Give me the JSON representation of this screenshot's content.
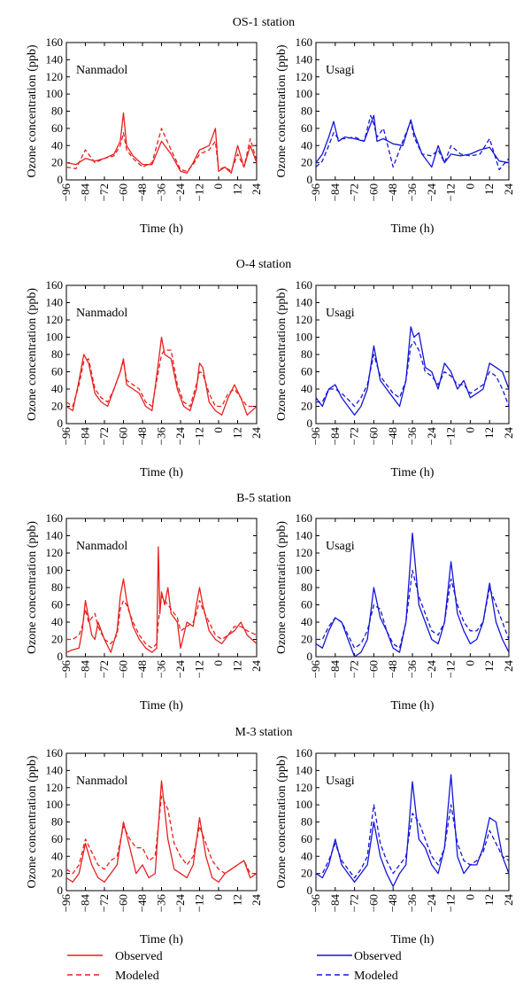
{
  "figure": {
    "legend": {
      "nanmadol": {
        "observed": "Observed",
        "modeled": "Modeled",
        "color": "#e8201e"
      },
      "usagi": {
        "observed": "Observed",
        "modeled": "Modeled",
        "color": "#1515d8"
      }
    }
  },
  "chart_data": [
    {
      "type": "line",
      "station": "OS-1 station",
      "typhoon": "Nanmadol",
      "xlabel": "Time (h)",
      "ylabel": "Ozone concentration (ppb)",
      "xlim": [
        -96,
        24
      ],
      "ylim": [
        0,
        160
      ],
      "xticks": [
        -96,
        -84,
        -72,
        -60,
        -48,
        -36,
        -24,
        -12,
        0,
        12,
        24
      ],
      "yticks": [
        0,
        20,
        40,
        60,
        80,
        100,
        120,
        140,
        160
      ],
      "color": "#e8201e",
      "x": [
        -96,
        -90,
        -84,
        -78,
        -72,
        -66,
        -62,
        -60,
        -58,
        -54,
        -48,
        -42,
        -36,
        -30,
        -24,
        -20,
        -16,
        -12,
        -6,
        -2,
        0,
        4,
        8,
        12,
        16,
        20,
        24
      ],
      "series": [
        {
          "name": "Observed",
          "values": [
            20,
            18,
            25,
            22,
            25,
            30,
            45,
            78,
            40,
            28,
            18,
            18,
            45,
            30,
            10,
            8,
            20,
            35,
            40,
            60,
            10,
            15,
            8,
            40,
            15,
            40,
            20
          ]
        },
        {
          "name": "Modeled",
          "values": [
            15,
            13,
            35,
            20,
            25,
            28,
            40,
            55,
            35,
            25,
            15,
            20,
            60,
            35,
            12,
            10,
            18,
            30,
            35,
            45,
            12,
            15,
            10,
            30,
            15,
            48,
            22
          ]
        }
      ]
    },
    {
      "type": "line",
      "station": "OS-1 station",
      "typhoon": "Usagi",
      "xlabel": "Time (h)",
      "ylabel": "Ozone concentration (ppb)",
      "xlim": [
        -96,
        24
      ],
      "ylim": [
        0,
        160
      ],
      "xticks": [
        -96,
        -84,
        -72,
        -60,
        -48,
        -36,
        -24,
        -12,
        0,
        12,
        24
      ],
      "yticks": [
        0,
        20,
        40,
        60,
        80,
        100,
        120,
        140,
        160
      ],
      "color": "#1515d8",
      "x": [
        -96,
        -92,
        -88,
        -85,
        -82,
        -78,
        -72,
        -66,
        -62,
        -60,
        -58,
        -54,
        -48,
        -42,
        -37,
        -35,
        -30,
        -24,
        -20,
        -16,
        -12,
        -6,
        0,
        6,
        12,
        18,
        24
      ],
      "series": [
        {
          "name": "Observed",
          "values": [
            20,
            30,
            50,
            68,
            45,
            50,
            48,
            45,
            65,
            75,
            45,
            48,
            42,
            40,
            70,
            55,
            30,
            15,
            40,
            20,
            30,
            28,
            30,
            35,
            38,
            22,
            20
          ]
        },
        {
          "name": "Modeled",
          "values": [
            15,
            22,
            40,
            55,
            48,
            48,
            50,
            45,
            75,
            65,
            50,
            60,
            15,
            45,
            68,
            50,
            30,
            28,
            35,
            20,
            40,
            30,
            28,
            30,
            48,
            12,
            25
          ]
        }
      ]
    },
    {
      "type": "line",
      "station": "O-4 station",
      "typhoon": "Nanmadol",
      "xlabel": "Time (h)",
      "ylabel": "Ozone concentration (ppb)",
      "xlim": [
        -96,
        24
      ],
      "ylim": [
        0,
        160
      ],
      "xticks": [
        -96,
        -84,
        -72,
        -60,
        -48,
        -36,
        -24,
        -12,
        0,
        12,
        24
      ],
      "yticks": [
        0,
        20,
        40,
        60,
        80,
        100,
        120,
        140,
        160
      ],
      "color": "#e8201e",
      "x": [
        -96,
        -92,
        -88,
        -85,
        -82,
        -78,
        -74,
        -70,
        -66,
        -62,
        -60,
        -58,
        -54,
        -50,
        -46,
        -42,
        -38,
        -36,
        -34,
        -30,
        -26,
        -22,
        -18,
        -14,
        -12,
        -10,
        -6,
        -2,
        2,
        6,
        10,
        14,
        18,
        24
      ],
      "series": [
        {
          "name": "Observed",
          "values": [
            20,
            15,
            50,
            80,
            70,
            35,
            25,
            20,
            40,
            60,
            75,
            45,
            40,
            35,
            20,
            15,
            70,
            100,
            80,
            75,
            40,
            20,
            15,
            40,
            70,
            65,
            25,
            15,
            10,
            30,
            45,
            30,
            10,
            20
          ]
        },
        {
          "name": "Modeled",
          "values": [
            25,
            20,
            45,
            72,
            75,
            40,
            30,
            25,
            40,
            60,
            72,
            50,
            45,
            40,
            25,
            20,
            60,
            80,
            85,
            85,
            45,
            25,
            20,
            45,
            60,
            58,
            35,
            20,
            20,
            35,
            40,
            30,
            20,
            20
          ]
        }
      ]
    },
    {
      "type": "line",
      "station": "O-4 station",
      "typhoon": "Usagi",
      "xlabel": "Time (h)",
      "ylabel": "Ozone concentration (ppb)",
      "xlim": [
        -96,
        24
      ],
      "ylim": [
        0,
        160
      ],
      "xticks": [
        -96,
        -84,
        -72,
        -60,
        -48,
        -36,
        -24,
        -12,
        0,
        12,
        24
      ],
      "yticks": [
        0,
        20,
        40,
        60,
        80,
        100,
        120,
        140,
        160
      ],
      "color": "#1515d8",
      "x": [
        -96,
        -92,
        -88,
        -84,
        -80,
        -76,
        -72,
        -68,
        -64,
        -60,
        -56,
        -52,
        -48,
        -44,
        -40,
        -37,
        -35,
        -32,
        -28,
        -24,
        -20,
        -16,
        -12,
        -8,
        -4,
        0,
        4,
        8,
        12,
        16,
        20,
        24
      ],
      "series": [
        {
          "name": "Observed",
          "values": [
            30,
            20,
            40,
            45,
            30,
            20,
            10,
            20,
            40,
            90,
            50,
            40,
            30,
            20,
            50,
            112,
            100,
            105,
            65,
            60,
            40,
            70,
            60,
            40,
            50,
            30,
            35,
            40,
            70,
            65,
            60,
            40
          ]
        },
        {
          "name": "Modeled",
          "values": [
            25,
            25,
            40,
            40,
            35,
            28,
            20,
            30,
            45,
            80,
            55,
            45,
            35,
            30,
            50,
            90,
            95,
            85,
            60,
            55,
            45,
            60,
            55,
            45,
            45,
            35,
            40,
            45,
            60,
            55,
            40,
            20
          ]
        }
      ]
    },
    {
      "type": "line",
      "station": "B-5 station",
      "typhoon": "Nanmadol",
      "xlabel": "Time (h)",
      "ylabel": "Ozone concentration (ppb)",
      "xlim": [
        -96,
        24
      ],
      "ylim": [
        0,
        160
      ],
      "xticks": [
        -96,
        -84,
        -72,
        -60,
        -48,
        -36,
        -24,
        -12,
        0,
        12,
        24
      ],
      "yticks": [
        0,
        20,
        40,
        60,
        80,
        100,
        120,
        140,
        160
      ],
      "color": "#e8201e",
      "x": [
        -96,
        -92,
        -88,
        -86,
        -84,
        -82,
        -80,
        -78,
        -76,
        -72,
        -68,
        -64,
        -62,
        -60,
        -58,
        -54,
        -50,
        -46,
        -42,
        -39,
        -38,
        -37,
        -36,
        -34,
        -32,
        -30,
        -26,
        -24,
        -20,
        -16,
        -14,
        -12,
        -10,
        -6,
        -2,
        2,
        6,
        10,
        14,
        18,
        24
      ],
      "series": [
        {
          "name": "Observed",
          "values": [
            5,
            8,
            10,
            30,
            65,
            45,
            25,
            20,
            40,
            20,
            5,
            30,
            70,
            90,
            65,
            35,
            20,
            10,
            5,
            10,
            127,
            50,
            75,
            60,
            80,
            50,
            40,
            10,
            40,
            35,
            60,
            80,
            60,
            30,
            20,
            15,
            25,
            30,
            40,
            25,
            15
          ]
        },
        {
          "name": "Modeled",
          "values": [
            20,
            20,
            25,
            35,
            55,
            40,
            45,
            50,
            35,
            20,
            15,
            25,
            55,
            65,
            60,
            40,
            25,
            15,
            10,
            15,
            40,
            55,
            70,
            65,
            60,
            55,
            45,
            30,
            35,
            40,
            50,
            65,
            55,
            40,
            25,
            20,
            25,
            35,
            35,
            30,
            25
          ]
        }
      ]
    },
    {
      "type": "line",
      "station": "B-5 station",
      "typhoon": "Usagi",
      "xlabel": "Time (h)",
      "ylabel": "Ozone concentration (ppb)",
      "xlim": [
        -96,
        24
      ],
      "ylim": [
        0,
        160
      ],
      "xticks": [
        -96,
        -84,
        -72,
        -60,
        -48,
        -36,
        -24,
        -12,
        0,
        12,
        24
      ],
      "yticks": [
        0,
        20,
        40,
        60,
        80,
        100,
        120,
        140,
        160
      ],
      "color": "#1515d8",
      "x": [
        -96,
        -92,
        -88,
        -84,
        -80,
        -76,
        -72,
        -68,
        -64,
        -60,
        -56,
        -52,
        -48,
        -44,
        -40,
        -36,
        -32,
        -28,
        -24,
        -20,
        -16,
        -12,
        -8,
        -4,
        0,
        4,
        8,
        12,
        16,
        20,
        24
      ],
      "series": [
        {
          "name": "Observed",
          "values": [
            15,
            10,
            30,
            45,
            40,
            20,
            0,
            5,
            20,
            80,
            45,
            30,
            10,
            5,
            40,
            143,
            60,
            40,
            20,
            15,
            40,
            110,
            50,
            30,
            15,
            20,
            40,
            85,
            40,
            20,
            5
          ]
        },
        {
          "name": "Modeled",
          "values": [
            20,
            20,
            35,
            45,
            40,
            25,
            10,
            15,
            30,
            60,
            55,
            30,
            15,
            10,
            40,
            100,
            70,
            50,
            30,
            25,
            40,
            90,
            60,
            40,
            30,
            30,
            40,
            80,
            60,
            40,
            20
          ]
        }
      ]
    },
    {
      "type": "line",
      "station": "M-3 station",
      "typhoon": "Nanmadol",
      "xlabel": "Time (h)",
      "ylabel": "Ozone concentration (ppb)",
      "xlim": [
        -96,
        24
      ],
      "ylim": [
        0,
        160
      ],
      "xticks": [
        -96,
        -84,
        -72,
        -60,
        -48,
        -36,
        -24,
        -12,
        0,
        12,
        24
      ],
      "yticks": [
        0,
        20,
        40,
        60,
        80,
        100,
        120,
        140,
        160
      ],
      "color": "#e8201e",
      "x": [
        -96,
        -92,
        -88,
        -84,
        -80,
        -76,
        -72,
        -68,
        -64,
        -60,
        -56,
        -52,
        -48,
        -44,
        -40,
        -36,
        -32,
        -28,
        -24,
        -20,
        -16,
        -12,
        -8,
        -4,
        0,
        4,
        8,
        12,
        16,
        20,
        24
      ],
      "series": [
        {
          "name": "Observed",
          "values": [
            15,
            10,
            20,
            55,
            30,
            15,
            10,
            20,
            30,
            80,
            50,
            20,
            30,
            15,
            20,
            128,
            60,
            25,
            20,
            15,
            30,
            85,
            40,
            15,
            10,
            20,
            25,
            30,
            35,
            15,
            20
          ]
        },
        {
          "name": "Modeled",
          "values": [
            25,
            20,
            30,
            60,
            45,
            30,
            25,
            35,
            40,
            75,
            60,
            50,
            50,
            35,
            40,
            110,
            95,
            55,
            40,
            30,
            40,
            75,
            55,
            35,
            25,
            20,
            25,
            30,
            35,
            20,
            20
          ]
        }
      ]
    },
    {
      "type": "line",
      "station": "M-3 station",
      "typhoon": "Usagi",
      "xlabel": "Time (h)",
      "ylabel": "Ozone concentration (ppb)",
      "xlim": [
        -96,
        24
      ],
      "ylim": [
        0,
        160
      ],
      "xticks": [
        -96,
        -84,
        -72,
        -60,
        -48,
        -36,
        -24,
        -12,
        0,
        12,
        24
      ],
      "yticks": [
        0,
        20,
        40,
        60,
        80,
        100,
        120,
        140,
        160
      ],
      "color": "#1515d8",
      "x": [
        -96,
        -92,
        -88,
        -84,
        -80,
        -76,
        -72,
        -68,
        -64,
        -60,
        -56,
        -52,
        -48,
        -44,
        -40,
        -36,
        -32,
        -28,
        -24,
        -20,
        -16,
        -12,
        -8,
        -4,
        0,
        4,
        8,
        12,
        16,
        20,
        24
      ],
      "series": [
        {
          "name": "Observed",
          "values": [
            20,
            15,
            30,
            60,
            30,
            20,
            10,
            20,
            30,
            80,
            40,
            20,
            5,
            20,
            30,
            127,
            60,
            50,
            30,
            20,
            50,
            135,
            40,
            20,
            30,
            30,
            50,
            85,
            80,
            40,
            20
          ]
        },
        {
          "name": "Modeled",
          "values": [
            20,
            20,
            35,
            55,
            35,
            25,
            15,
            25,
            40,
            100,
            55,
            35,
            20,
            30,
            40,
            90,
            80,
            60,
            40,
            30,
            50,
            100,
            55,
            35,
            30,
            35,
            45,
            70,
            55,
            40,
            35
          ]
        }
      ]
    }
  ]
}
